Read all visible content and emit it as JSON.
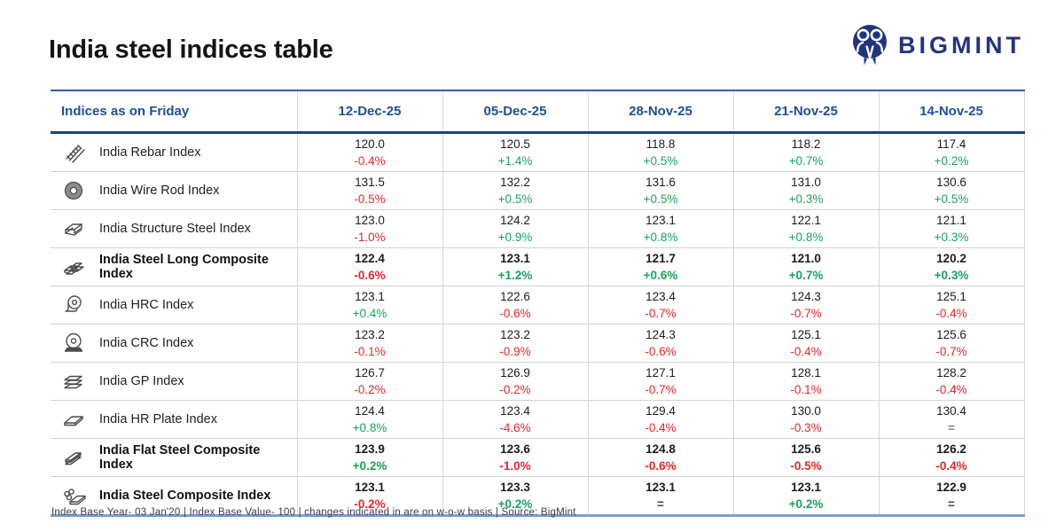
{
  "page": {
    "title": "India steel indices table"
  },
  "logo": {
    "text": "BIGMINT"
  },
  "colors": {
    "header_blue": "#1d4e9e",
    "logo_navy": "#21357e",
    "positive_green": "#17a35b",
    "negative_red": "#e9262c",
    "neutral": "#4a4a4a",
    "header_rule_dark": "#16418c",
    "bottom_rule_light": "#7ba0d6"
  },
  "chart_data": {
    "type": "table",
    "title": "India steel indices table",
    "header_label": "Indices as on Friday",
    "date_columns": [
      "12-Dec-25",
      "05-Dec-25",
      "28-Nov-25",
      "21-Nov-25",
      "14-Nov-25"
    ],
    "rows": [
      {
        "label": "India Rebar Index",
        "icon": "rebar-icon",
        "bold": false,
        "cells": [
          {
            "value": "120.0",
            "change": "-0.4%"
          },
          {
            "value": "120.5",
            "change": "+1.4%"
          },
          {
            "value": "118.8",
            "change": "+0.5%"
          },
          {
            "value": "118.2",
            "change": "+0.7%"
          },
          {
            "value": "117.4",
            "change": "+0.2%"
          }
        ]
      },
      {
        "label": "India Wire Rod Index",
        "icon": "wire-rod-icon",
        "bold": false,
        "cells": [
          {
            "value": "131.5",
            "change": "-0.5%"
          },
          {
            "value": "132.2",
            "change": "+0.5%"
          },
          {
            "value": "131.6",
            "change": "+0.5%"
          },
          {
            "value": "131.0",
            "change": "+0.3%"
          },
          {
            "value": "130.6",
            "change": "+0.5%"
          }
        ]
      },
      {
        "label": "India Structure Steel Index",
        "icon": "structure-steel-icon",
        "bold": false,
        "cells": [
          {
            "value": "123.0",
            "change": "-1.0%"
          },
          {
            "value": "124.2",
            "change": "+0.9%"
          },
          {
            "value": "123.1",
            "change": "+0.8%"
          },
          {
            "value": "122.1",
            "change": "+0.8%"
          },
          {
            "value": "121.1",
            "change": "+0.3%"
          }
        ]
      },
      {
        "label": "India Steel Long Composite Index",
        "icon": "steel-long-composite-icon",
        "bold": true,
        "cells": [
          {
            "value": "122.4",
            "change": "-0.6%"
          },
          {
            "value": "123.1",
            "change": "+1.2%"
          },
          {
            "value": "121.7",
            "change": "+0.6%"
          },
          {
            "value": "121.0",
            "change": "+0.7%"
          },
          {
            "value": "120.2",
            "change": "+0.3%"
          }
        ]
      },
      {
        "label": "India HRC Index",
        "icon": "hrc-coil-icon",
        "bold": false,
        "cells": [
          {
            "value": "123.1",
            "change": "+0.4%"
          },
          {
            "value": "122.6",
            "change": "-0.6%"
          },
          {
            "value": "123.4",
            "change": "-0.7%"
          },
          {
            "value": "124.3",
            "change": "-0.7%"
          },
          {
            "value": "125.1",
            "change": "-0.4%"
          }
        ]
      },
      {
        "label": "India CRC Index",
        "icon": "crc-coil-icon",
        "bold": false,
        "cells": [
          {
            "value": "123.2",
            "change": "-0.1%"
          },
          {
            "value": "123.2",
            "change": "-0.9%"
          },
          {
            "value": "124.3",
            "change": "-0.6%"
          },
          {
            "value": "125.1",
            "change": "-0.4%"
          },
          {
            "value": "125.6",
            "change": "-0.7%"
          }
        ]
      },
      {
        "label": "India GP Index",
        "icon": "gp-sheets-icon",
        "bold": false,
        "cells": [
          {
            "value": "126.7",
            "change": "-0.2%"
          },
          {
            "value": "126.9",
            "change": "-0.2%"
          },
          {
            "value": "127.1",
            "change": "-0.7%"
          },
          {
            "value": "128.1",
            "change": "-0.1%"
          },
          {
            "value": "128.2",
            "change": "-0.4%"
          }
        ]
      },
      {
        "label": "India HR Plate Index",
        "icon": "hr-plate-icon",
        "bold": false,
        "cells": [
          {
            "value": "124.4",
            "change": "+0.8%"
          },
          {
            "value": "123.4",
            "change": "-4.6%"
          },
          {
            "value": "129.4",
            "change": "-0.4%"
          },
          {
            "value": "130.0",
            "change": "-0.3%"
          },
          {
            "value": "130.4",
            "change": "="
          }
        ]
      },
      {
        "label": "India Flat Steel Composite Index",
        "icon": "flat-steel-composite-icon",
        "bold": true,
        "cells": [
          {
            "value": "123.9",
            "change": "+0.2%"
          },
          {
            "value": "123.6",
            "change": "-1.0%"
          },
          {
            "value": "124.8",
            "change": "-0.6%"
          },
          {
            "value": "125.6",
            "change": "-0.5%"
          },
          {
            "value": "126.2",
            "change": "-0.4%"
          }
        ]
      },
      {
        "label": "India Steel Composite Index",
        "icon": "steel-composite-icon",
        "bold": true,
        "cells": [
          {
            "value": "123.1",
            "change": "-0.2%"
          },
          {
            "value": "123.3",
            "change": "+0.2%"
          },
          {
            "value": "123.1",
            "change": "="
          },
          {
            "value": "123.1",
            "change": "+0.2%"
          },
          {
            "value": "122.9",
            "change": "="
          }
        ]
      }
    ],
    "footnote": "Index Base Year- 03 Jan'20 | Index Base Value- 100 | changes indicated in are on w-o-w basis | Source: BigMint"
  }
}
